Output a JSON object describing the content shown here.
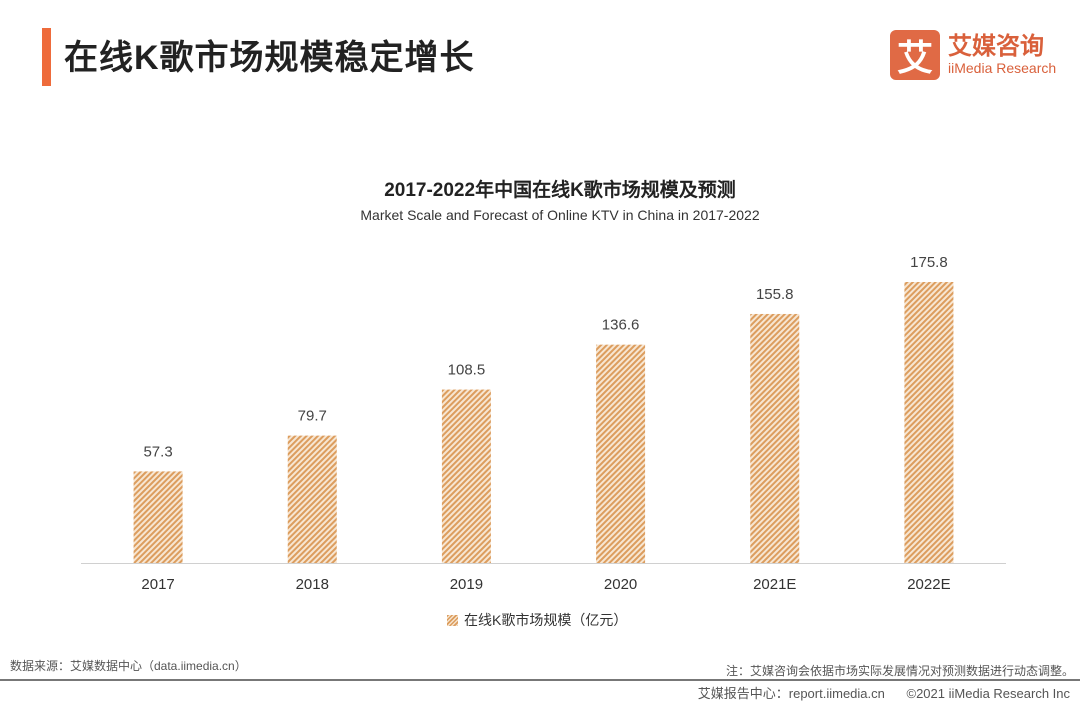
{
  "header": {
    "title": "在线K歌市场规模稳定增长",
    "logo_mark": "艾",
    "logo_cn": "艾媒咨询",
    "logo_en": "iiMedia Research"
  },
  "chart_data": {
    "type": "bar",
    "title": "2017-2022年中国在线K歌市场规模及预测",
    "subtitle": "Market Scale and Forecast of Online KTV in China in 2017-2022",
    "categories": [
      "2017",
      "2018",
      "2019",
      "2020",
      "2021E",
      "2022E"
    ],
    "series": [
      {
        "name": "在线K歌市场规模（亿元）",
        "values": [
          57.3,
          79.7,
          108.5,
          136.6,
          155.8,
          175.8
        ],
        "color": "#dc9d5e"
      }
    ],
    "data_labels": [
      "57.3",
      "79.7",
      "108.5",
      "136.6",
      "155.8",
      "175.8"
    ],
    "ylim": [
      0,
      175.8
    ],
    "grid": false,
    "legend_position": "bottom"
  },
  "footer": {
    "source": "数据来源：艾媒数据中心（data.iimedia.cn）",
    "note": "注：艾媒咨询会依据市场实际发展情况对预测数据进行动态调整。",
    "report": "艾媒报告中心：report.iimedia.cn",
    "copyright": "©2021  iiMedia Research  Inc"
  },
  "colors": {
    "accent": "#ee6b3b",
    "brand": "#e06a45"
  }
}
